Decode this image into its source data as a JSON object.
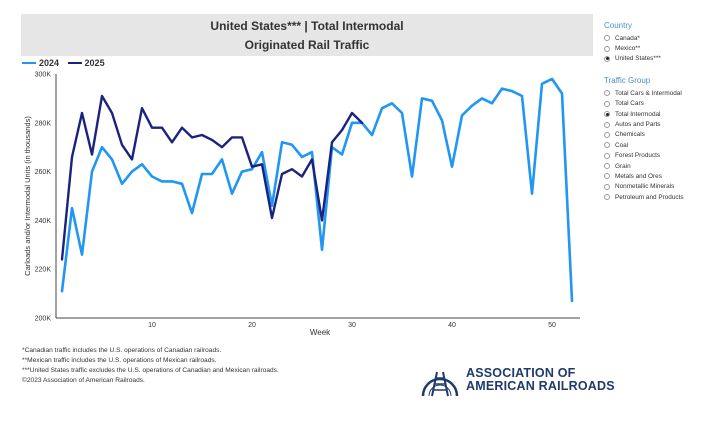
{
  "title": {
    "line1": "United States*** | Total Intermodal",
    "line2": "Originated Rail Traffic"
  },
  "colors": {
    "series2024": "#2196f3",
    "series2025": "#1a237e",
    "axis": "#444444",
    "accent": "#4a8fc7",
    "logo": "#1f3a6b"
  },
  "chart_data": {
    "type": "line",
    "title": "United States*** | Total Intermodal Originated Rail Traffic",
    "xlabel": "Week",
    "ylabel": "Carloads and/or Intermodal Units (in thousands)",
    "xlim": [
      1,
      52
    ],
    "ylim": [
      200,
      300
    ],
    "xticks": [
      10,
      20,
      30,
      40,
      50
    ],
    "yticks": [
      200,
      220,
      240,
      260,
      280,
      300
    ],
    "ytick_labels": [
      "200K",
      "220K",
      "240K",
      "260K",
      "280K",
      "300K"
    ],
    "grid": false,
    "legend": "top-left",
    "series": [
      {
        "name": "2024",
        "x": [
          1,
          2,
          3,
          4,
          5,
          6,
          7,
          8,
          9,
          10,
          11,
          12,
          13,
          14,
          15,
          16,
          17,
          18,
          19,
          20,
          21,
          22,
          23,
          24,
          25,
          26,
          27,
          28,
          29,
          30,
          31,
          32,
          33,
          34,
          35,
          36,
          37,
          38,
          39,
          40,
          41,
          42,
          43,
          44,
          45,
          46,
          47,
          48,
          49,
          50,
          51,
          52
        ],
        "values": [
          211,
          245,
          226,
          260,
          270,
          265,
          255,
          260,
          263,
          258,
          256,
          256,
          255,
          243,
          259,
          259,
          265,
          251,
          260,
          261,
          268,
          246,
          272,
          271,
          266,
          268,
          228,
          270,
          267,
          280,
          280,
          275,
          286,
          288,
          284,
          258,
          290,
          289,
          281,
          262,
          283,
          287,
          290,
          288,
          294,
          293,
          291,
          251,
          296,
          298,
          292,
          207
        ]
      },
      {
        "name": "2025",
        "x": [
          1,
          2,
          3,
          4,
          5,
          6,
          7,
          8,
          9,
          10,
          11,
          12,
          13,
          14,
          15,
          16,
          17,
          18,
          19,
          20,
          21,
          22,
          23,
          24,
          25,
          26,
          27,
          28,
          29,
          30,
          31
        ],
        "values": [
          224,
          266,
          284,
          267,
          291,
          284,
          271,
          265,
          286,
          278,
          278,
          272,
          278,
          274,
          275,
          273,
          270,
          274,
          274,
          262,
          263,
          241,
          259,
          261,
          258,
          265,
          240,
          272,
          277,
          284,
          280
        ]
      }
    ]
  },
  "sidebar": {
    "country": {
      "title": "Country",
      "options": [
        "Canada*",
        "Mexico**",
        "United States***"
      ],
      "selected": 2
    },
    "traffic": {
      "title": "Traffic Group",
      "options": [
        "Total Cars & Intermodal",
        "Total Cars",
        "Total Intermodal",
        "Autos and Parts",
        "Chemicals",
        "Coal",
        "Forest Products",
        "Grain",
        "Metals and Ores",
        "Nonmetallic Minerals",
        "Petroleum and Products"
      ],
      "selected": 2
    }
  },
  "notes": [
    "*Canadian traffic includes the U.S. operations of Canadian railroads.",
    "**Mexican traffic includes the U.S. operations of Mexican railroads.",
    "***United States traffic excludes the U.S. operations of Canadian and Mexican railroads.",
    "©2023 Association of American Railroads."
  ],
  "logo": {
    "line1": "ASSOCIATION OF",
    "line2": "AMERICAN RAILROADS"
  }
}
